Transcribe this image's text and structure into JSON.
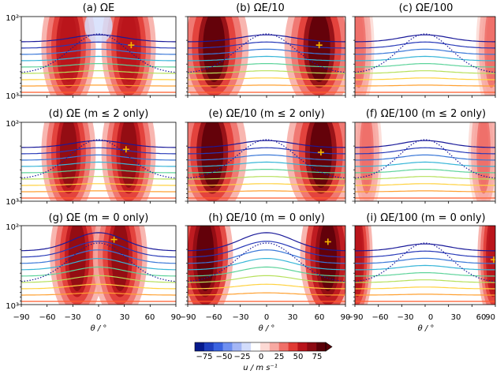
{
  "chart_data": {
    "type": "heatmap",
    "colorbar": {
      "label": "u / m s⁻¹",
      "ticks": [
        "−75",
        "−50",
        "−25",
        "0",
        "25",
        "50",
        "75"
      ],
      "range": [
        -87.5,
        87.5
      ],
      "extend": "max",
      "colors": [
        "#061a8c",
        "#1f3fbf",
        "#3a63e0",
        "#6e8ff0",
        "#a4b6f5",
        "#d2dcfb",
        "#ffffff",
        "#fcd9d4",
        "#f7a9a2",
        "#ef6f68",
        "#e03a34",
        "#b8141b",
        "#8c0a12",
        "#5a0008"
      ]
    },
    "x_axis": {
      "label": "θ / °",
      "range": [
        -90,
        90
      ],
      "ticks": [
        "−90",
        "−60",
        "−30",
        "0",
        "30",
        "60",
        "90"
      ]
    },
    "y_axis": {
      "scale": "log",
      "range": [
        1000,
        100
      ],
      "ticks": [
        "10²",
        "10³"
      ]
    },
    "panels": [
      {
        "title": "(a) ΩE",
        "peaks": [
          {
            "lat": -35,
            "u": 62
          },
          {
            "lat": 35,
            "u": 62
          }
        ],
        "easterly": -18,
        "marker": {
          "lat": 38,
          "p": 230
        },
        "style": "weak"
      },
      {
        "title": "(b) ΩE/10",
        "peaks": [
          {
            "lat": -60,
            "u": 75
          },
          {
            "lat": 60,
            "u": 75
          }
        ],
        "easterly": 0,
        "marker": {
          "lat": 60,
          "p": 230
        },
        "style": "broad"
      },
      {
        "title": "(c) ΩE/100",
        "peaks": [
          {
            "lat": -85,
            "u": 30
          },
          {
            "lat": 85,
            "u": 30
          }
        ],
        "easterly": 0,
        "marker": null,
        "style": "faint"
      },
      {
        "title": "(d) ΩE (m ≤ 2 only)",
        "peaks": [
          {
            "lat": -35,
            "u": 65
          },
          {
            "lat": 35,
            "u": 65
          }
        ],
        "easterly": 0,
        "marker": {
          "lat": 32,
          "p": 220
        },
        "style": "weak"
      },
      {
        "title": "(e) ΩE/10 (m ≤ 2 only)",
        "peaks": [
          {
            "lat": -62,
            "u": 75
          },
          {
            "lat": 62,
            "u": 75
          }
        ],
        "easterly": 0,
        "marker": {
          "lat": 62,
          "p": 240
        },
        "style": "broad"
      },
      {
        "title": "(f) ΩE/100 (m ≤ 2 only)",
        "peaks": [
          {
            "lat": -75,
            "u": 30
          },
          {
            "lat": 75,
            "u": 30
          }
        ],
        "easterly": 0,
        "marker": null,
        "style": "faint"
      },
      {
        "title": "(g) ΩE (m = 0 only)",
        "peaks": [
          {
            "lat": -25,
            "u": 70
          },
          {
            "lat": 25,
            "u": 70
          }
        ],
        "easterly": 0,
        "marker": {
          "lat": 18,
          "p": 150
        },
        "style": "strong"
      },
      {
        "title": "(h) ΩE/10 (m = 0 only)",
        "peaks": [
          {
            "lat": -70,
            "u": 85
          },
          {
            "lat": 70,
            "u": 85
          }
        ],
        "easterly": 0,
        "marker": {
          "lat": 70,
          "p": 160
        },
        "style": "strong"
      },
      {
        "title": "(i) ΩE/100 (m = 0 only)",
        "peaks": [
          {
            "lat": -87,
            "u": 60
          },
          {
            "lat": 87,
            "u": 60
          }
        ],
        "easterly": 0,
        "marker": {
          "lat": 88,
          "p": 270
        },
        "style": "faint"
      }
    ]
  }
}
